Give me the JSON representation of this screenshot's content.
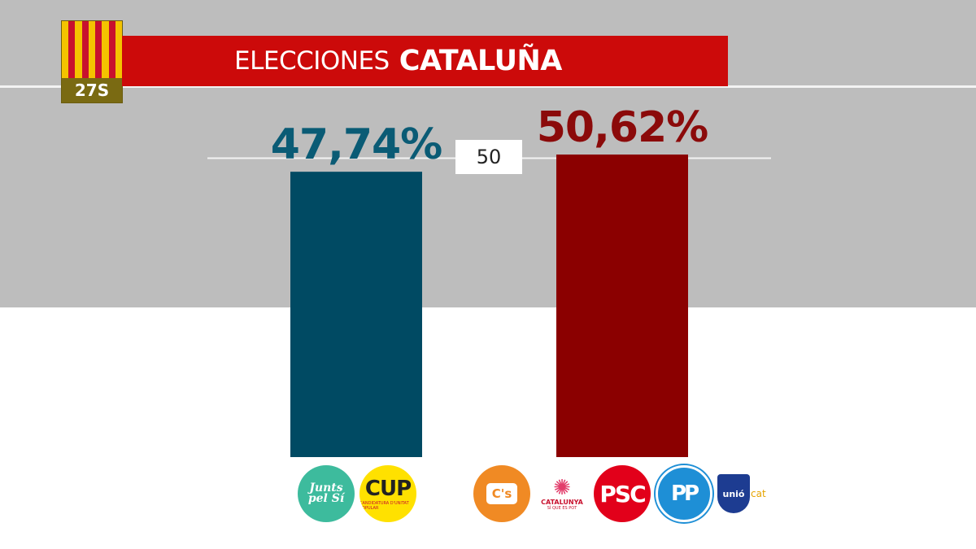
{
  "header": {
    "badge_label": "27S",
    "title_light": "ELECCIONES",
    "title_bold": "CATALUÑA"
  },
  "colors": {
    "bloc_independence": "#004a63",
    "bloc_other": "#8b0000",
    "banner": "#cc0a0a",
    "value_independence": "#0a5b75",
    "value_other": "#8b0a0a"
  },
  "chart_data": {
    "type": "bar",
    "categories": [
      "Junts pel Sí + CUP",
      "C's + Catalunya Sí que es Pot + PSC + PP + Unió"
    ],
    "values": [
      47.74,
      50.62
    ],
    "value_labels": [
      "47,74%",
      "50,62%"
    ],
    "reference_line": {
      "value": 50,
      "label": "50"
    },
    "ylim": [
      0,
      50.62
    ],
    "title": "ELECCIONES CATALUÑA",
    "xlabel": "",
    "ylabel": "",
    "grid": false,
    "legend": "none"
  },
  "parties": {
    "left": [
      {
        "name": "Junts pel Sí",
        "text": "Junts pel Sí",
        "icon": "junts-pel-si-logo"
      },
      {
        "name": "CUP",
        "text": "CUP",
        "subtext": "CANDIDATURA D'UNITAT POPULAR",
        "icon": "cup-logo"
      }
    ],
    "right": [
      {
        "name": "Ciudadanos",
        "text": "C's",
        "icon": "ciudadanos-logo"
      },
      {
        "name": "Catalunya Sí que es Pot",
        "text": "CATALUNYA",
        "subtext": "SÍ QUE ES POT",
        "icon": "catalunya-si-que-es-pot-logo"
      },
      {
        "name": "PSC",
        "text": "PSC",
        "icon": "psc-logo"
      },
      {
        "name": "PP",
        "text": "PP",
        "icon": "pp-logo"
      },
      {
        "name": "Unió",
        "text": "unió",
        "subtext": "cat",
        "icon": "unio-logo"
      }
    ]
  }
}
